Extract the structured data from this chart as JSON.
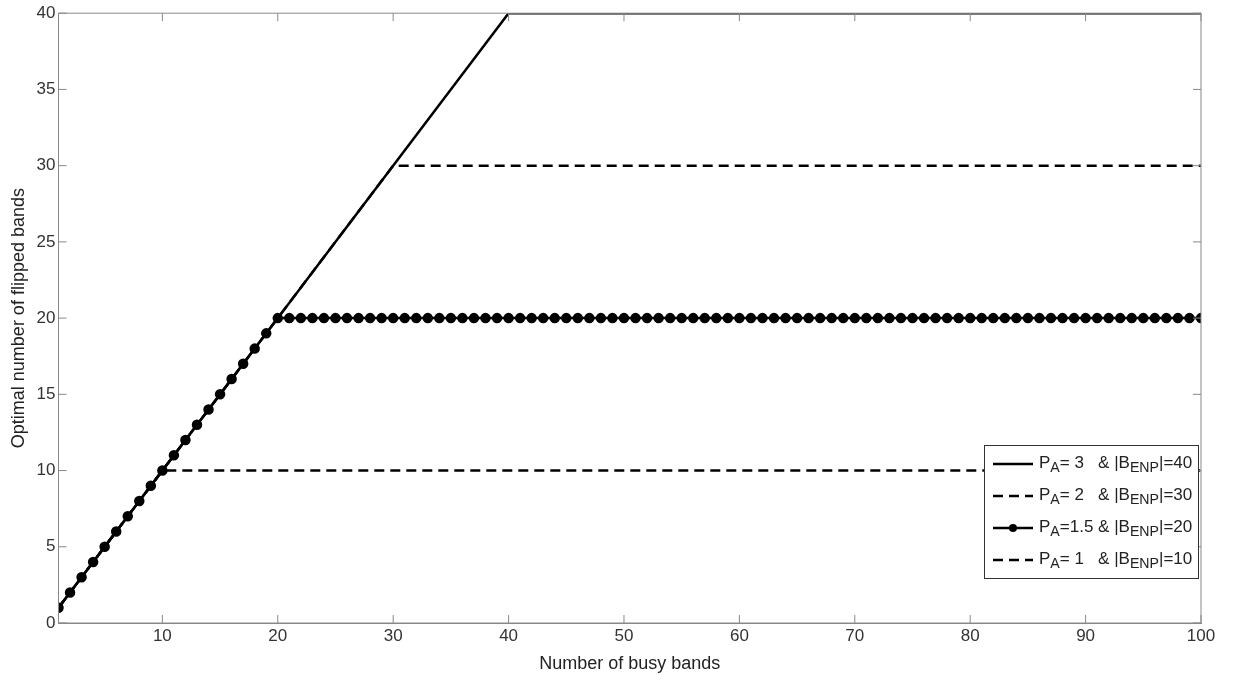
{
  "chart_data": {
    "type": "line",
    "xlabel": "Number of busy bands",
    "ylabel": "Optimal number of flipped bands",
    "xlim": [
      1,
      100
    ],
    "xticks": [
      10,
      20,
      30,
      40,
      50,
      60,
      70,
      80,
      90,
      100
    ],
    "ylim": [
      0,
      40
    ],
    "yticks": [
      0,
      5,
      10,
      15,
      20,
      25,
      30,
      35,
      40
    ],
    "grid": false,
    "legend": "bottom right",
    "series": [
      {
        "name": "P$_{A}$= 3   & |B$_{ENP}$|=40",
        "color": "#000000",
        "line_style": "solid",
        "marker": "none",
        "x": [
          1,
          40,
          100
        ],
        "values": [
          1,
          40,
          40
        ]
      },
      {
        "name": "P$_{A}$= 2   & |B$_{ENP}$|=30",
        "color": "#000000",
        "line_style": "dashed",
        "marker": "none",
        "x": [
          1,
          30,
          100
        ],
        "values": [
          1,
          30,
          30
        ]
      },
      {
        "name": "P$_{A}$=1.5 & |B$_{ENP}$|=20",
        "color": "#000000",
        "line_style": "solid",
        "marker": "circle",
        "x": [
          1,
          2,
          3,
          4,
          5,
          6,
          7,
          8,
          9,
          10,
          11,
          12,
          13,
          14,
          15,
          16,
          17,
          18,
          19,
          20,
          21,
          22,
          23,
          24,
          25,
          26,
          27,
          28,
          29,
          30,
          31,
          32,
          33,
          34,
          35,
          36,
          37,
          38,
          39,
          40,
          41,
          42,
          43,
          44,
          45,
          46,
          47,
          48,
          49,
          50,
          51,
          52,
          53,
          54,
          55,
          56,
          57,
          58,
          59,
          60,
          61,
          62,
          63,
          64,
          65,
          66,
          67,
          68,
          69,
          70,
          71,
          72,
          73,
          74,
          75,
          76,
          77,
          78,
          79,
          80,
          81,
          82,
          83,
          84,
          85,
          86,
          87,
          88,
          89,
          90,
          91,
          92,
          93,
          94,
          95,
          96,
          97,
          98,
          99,
          100
        ],
        "values": [
          1,
          2,
          3,
          4,
          5,
          6,
          7,
          8,
          9,
          10,
          11,
          12,
          13,
          14,
          15,
          16,
          17,
          18,
          19,
          20,
          20,
          20,
          20,
          20,
          20,
          20,
          20,
          20,
          20,
          20,
          20,
          20,
          20,
          20,
          20,
          20,
          20,
          20,
          20,
          20,
          20,
          20,
          20,
          20,
          20,
          20,
          20,
          20,
          20,
          20,
          20,
          20,
          20,
          20,
          20,
          20,
          20,
          20,
          20,
          20,
          20,
          20,
          20,
          20,
          20,
          20,
          20,
          20,
          20,
          20,
          20,
          20,
          20,
          20,
          20,
          20,
          20,
          20,
          20,
          20,
          20,
          20,
          20,
          20,
          20,
          20,
          20,
          20,
          20,
          20,
          20,
          20,
          20,
          20,
          20,
          20,
          20,
          20,
          20,
          20
        ]
      },
      {
        "name": "P$_{A}$= 1   & |B$_{ENP}$|=10",
        "color": "#000000",
        "line_style": "dashed",
        "marker": "none",
        "x": [
          1,
          10,
          100
        ],
        "values": [
          1,
          10,
          10
        ]
      }
    ]
  }
}
